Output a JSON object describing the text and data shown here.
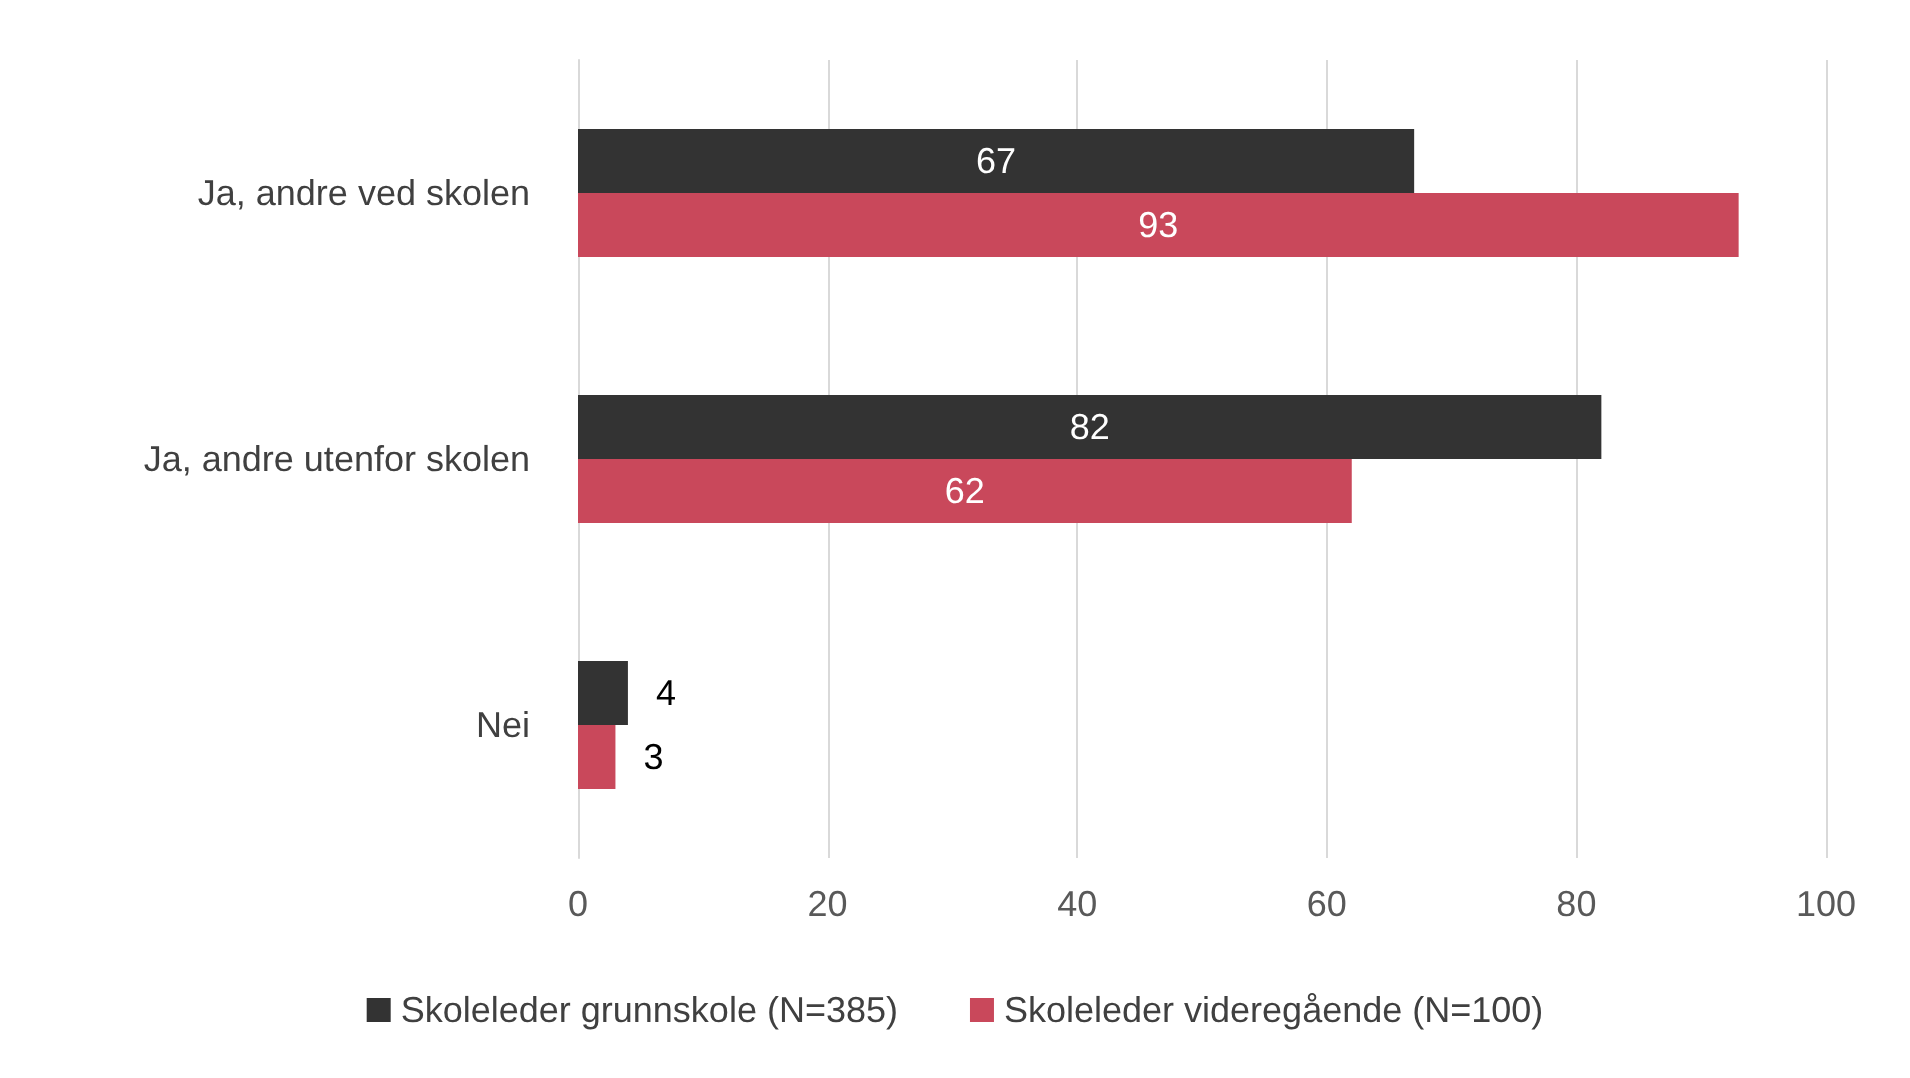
{
  "chart_data": {
    "type": "bar",
    "orientation": "horizontal",
    "categories": [
      "Ja, andre ved skolen",
      "Ja, andre utenfor skolen",
      "Nei"
    ],
    "series": [
      {
        "name": "Skoleleder grunnskole (N=385)",
        "color": "#333333",
        "values": [
          67,
          82,
          4
        ]
      },
      {
        "name": "Skoleleder videregående (N=100)",
        "color": "#c9485b",
        "values": [
          93,
          62,
          3
        ]
      }
    ],
    "xlim": [
      0,
      100
    ],
    "xticks": [
      0,
      20,
      40,
      60,
      80,
      100
    ],
    "grid": "x",
    "legend": "bottom",
    "data_labels": true
  }
}
